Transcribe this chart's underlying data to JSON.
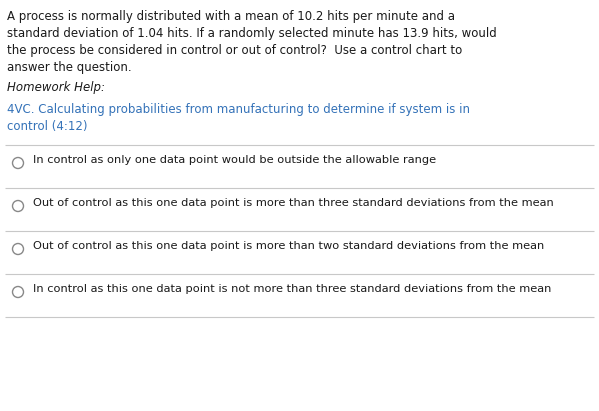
{
  "background_color": "#ffffff",
  "question_text_lines": [
    "A process is normally distributed with a mean of 10.2 hits per minute and a",
    "standard deviation of 1.04 hits. If a randomly selected minute has 13.9 hits, would",
    "the process be considered in control or out of control?  Use a control chart to",
    "answer the question."
  ],
  "homework_label": "Homework Help:",
  "link_text_line1": "4VC. Calculating probabilities from manufacturing to determine if system is in",
  "link_text_line2": "control (4:12)",
  "answer_options": [
    "In control as only one data point would be outside the allowable range",
    "Out of control as this one data point is more than three standard deviations from the mean",
    "Out of control as this one data point is more than two standard deviations from the mean",
    "In control as this one data point is not more than three standard deviations from the mean"
  ],
  "question_color": "#1a1a1a",
  "homework_color": "#1a1a1a",
  "link_color": "#3472b8",
  "option_color": "#1a1a1a",
  "separator_color": "#c8c8c8",
  "radio_color": "#888888",
  "font_size_question": 8.5,
  "font_size_homework": 8.5,
  "font_size_link": 8.5,
  "font_size_options": 8.2
}
